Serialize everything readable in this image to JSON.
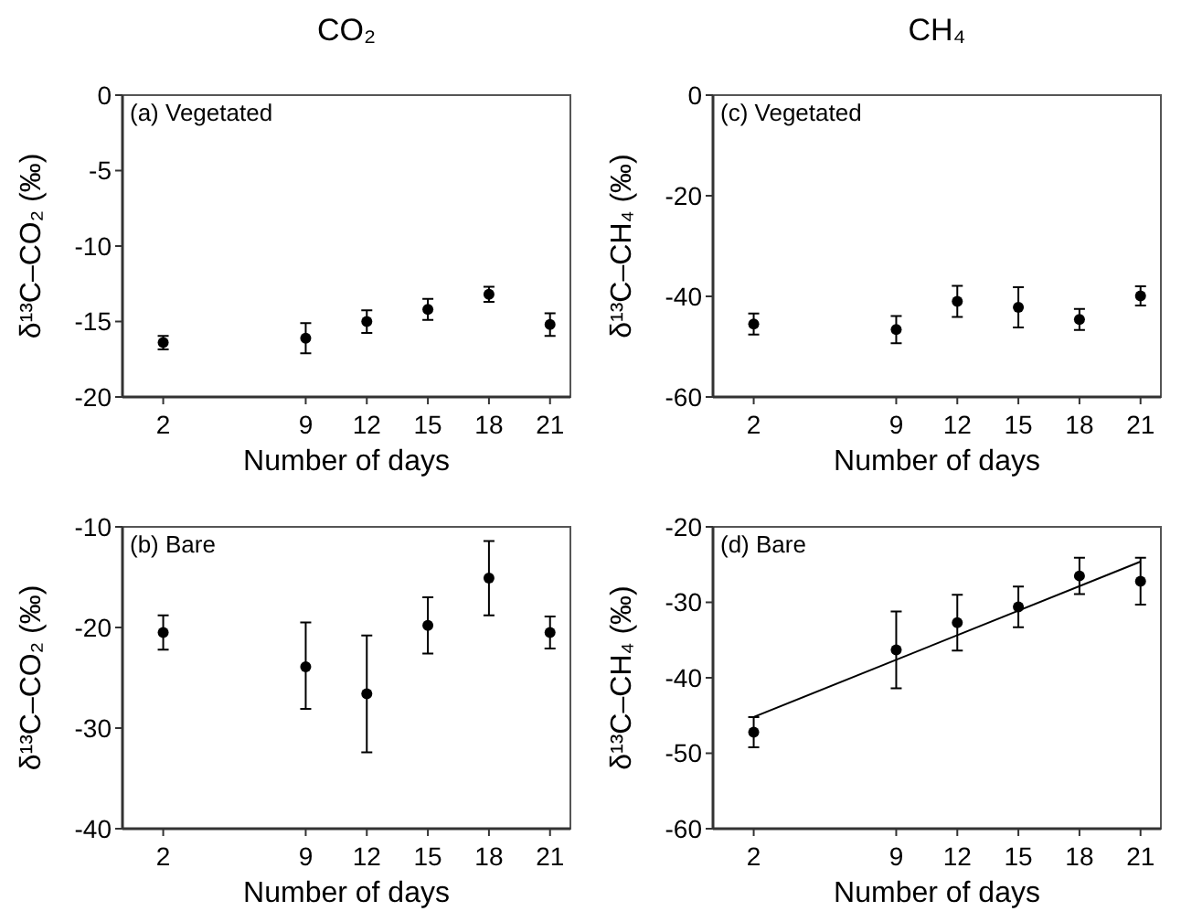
{
  "chart_data": [
    {
      "type": "scatter",
      "title": "CO₂",
      "xlabel": "Number of days",
      "ylabel": "δ¹³C–CO₂ (‰)",
      "annotations": [
        "(a) Vegetated"
      ],
      "xlim": [
        0,
        22
      ],
      "xticks": [
        2,
        9,
        12,
        15,
        18,
        21
      ],
      "ylim": [
        -20,
        0
      ],
      "yticks": [
        0,
        -5,
        -10,
        -15,
        -20
      ],
      "marker": "circle",
      "series": [
        {
          "color": "#000000",
          "x": [
            2,
            9,
            12,
            15,
            18,
            21
          ],
          "values": [
            -16.4,
            -16.1,
            -15.0,
            -14.2,
            -13.2,
            -15.2
          ],
          "errors": [
            0.45,
            1.0,
            0.75,
            0.7,
            0.5,
            0.75
          ]
        }
      ]
    },
    {
      "type": "scatter",
      "xlabel": "Number of days",
      "ylabel": "δ¹³C–CO₂ (‰)",
      "annotations": [
        "(b) Bare"
      ],
      "xlim": [
        0,
        22
      ],
      "xticks": [
        2,
        9,
        12,
        15,
        18,
        21
      ],
      "ylim": [
        -40,
        -10
      ],
      "yticks": [
        -10,
        -20,
        -30,
        -40
      ],
      "marker": "circle",
      "series": [
        {
          "color": "#000000",
          "x": [
            2,
            9,
            12,
            15,
            18,
            21
          ],
          "values": [
            -20.5,
            -23.9,
            -26.6,
            -19.8,
            -15.1,
            -20.5
          ],
          "errors": [
            1.7,
            [
              -28.1,
              -19.5
            ],
            5.8,
            2.8,
            3.7,
            1.6
          ]
        }
      ]
    },
    {
      "type": "scatter",
      "title": "CH₄",
      "xlabel": "Number of days",
      "ylabel": "δ¹³C–CH₄ (‰)",
      "annotations": [
        "(c) Vegetated"
      ],
      "xlim": [
        0,
        22
      ],
      "xticks": [
        2,
        9,
        12,
        15,
        18,
        21
      ],
      "ylim": [
        -60,
        0
      ],
      "yticks": [
        0,
        -20,
        -40,
        -60
      ],
      "marker": "circle",
      "series": [
        {
          "color": "#000000",
          "x": [
            2,
            9,
            12,
            15,
            18,
            21
          ],
          "values": [
            -45.5,
            -46.6,
            -41.0,
            -42.2,
            -44.6,
            -39.9
          ],
          "errors": [
            2.1,
            2.7,
            3.1,
            4.0,
            2.1,
            1.9
          ]
        }
      ]
    },
    {
      "type": "scatter",
      "xlabel": "Number of days",
      "ylabel": "δ¹³C–CH₄ (‰)",
      "annotations": [
        "(d) Bare"
      ],
      "xlim": [
        0,
        22
      ],
      "xticks": [
        2,
        9,
        12,
        15,
        18,
        21
      ],
      "ylim": [
        -60,
        -20
      ],
      "yticks": [
        -20,
        -30,
        -40,
        -50,
        -60
      ],
      "marker": "circle",
      "series": [
        {
          "color": "#000000",
          "x": [
            2,
            9,
            12,
            15,
            18,
            21
          ],
          "values": [
            -47.2,
            -36.3,
            -32.7,
            -30.6,
            -26.5,
            -27.2
          ],
          "errors": [
            2.0,
            5.1,
            3.7,
            2.7,
            2.4,
            3.1
          ]
        },
        {
          "type": "line",
          "color": "#000000",
          "marker": "none",
          "x": [
            2,
            21
          ],
          "values": [
            -45.2,
            -24.6
          ]
        }
      ]
    }
  ]
}
